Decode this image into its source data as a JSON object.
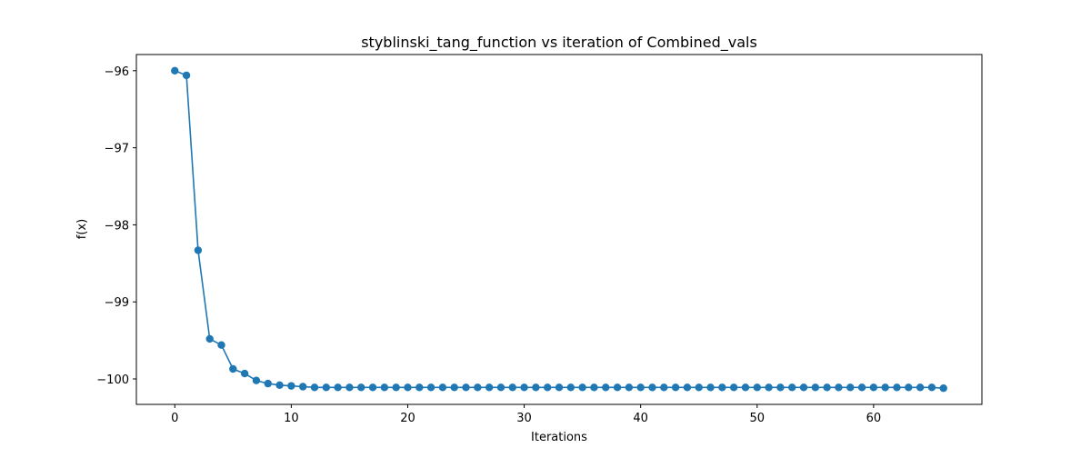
{
  "chart_data": {
    "type": "line",
    "title": "styblinski_tang_function vs iteration of Combined_vals",
    "xlabel": "Iterations",
    "ylabel": "f(x)",
    "xlim": [
      -3.3,
      69.3
    ],
    "ylim": [
      -100.33,
      -95.79
    ],
    "xticks": [
      0,
      10,
      20,
      30,
      40,
      50,
      60
    ],
    "yticks": [
      -96,
      -97,
      -98,
      -99,
      -100
    ],
    "xtick_labels": [
      "0",
      "10",
      "20",
      "30",
      "40",
      "50",
      "60"
    ],
    "ytick_labels": [
      "−96",
      "−97",
      "−98",
      "−99",
      "−100"
    ],
    "grid": false,
    "marker": "circle",
    "color": "#1f77b4",
    "series": [
      {
        "x": [
          0,
          1,
          2,
          3,
          4,
          5,
          6,
          7,
          8,
          9,
          10,
          11,
          12,
          13,
          14,
          15,
          16,
          17,
          18,
          19,
          20,
          21,
          22,
          23,
          24,
          25,
          26,
          27,
          28,
          29,
          30,
          31,
          32,
          33,
          34,
          35,
          36,
          37,
          38,
          39,
          40,
          41,
          42,
          43,
          44,
          45,
          46,
          47,
          48,
          49,
          50,
          51,
          52,
          53,
          54,
          55,
          56,
          57,
          58,
          59,
          60,
          61,
          62,
          63,
          64,
          65,
          66
        ],
        "values": [
          -96.0,
          -96.06,
          -98.33,
          -99.48,
          -99.56,
          -99.87,
          -99.93,
          -100.02,
          -100.06,
          -100.08,
          -100.09,
          -100.1,
          -100.11,
          -100.11,
          -100.11,
          -100.11,
          -100.11,
          -100.11,
          -100.11,
          -100.11,
          -100.11,
          -100.11,
          -100.11,
          -100.11,
          -100.11,
          -100.11,
          -100.11,
          -100.11,
          -100.11,
          -100.11,
          -100.11,
          -100.11,
          -100.11,
          -100.11,
          -100.11,
          -100.11,
          -100.11,
          -100.11,
          -100.11,
          -100.11,
          -100.11,
          -100.11,
          -100.11,
          -100.11,
          -100.11,
          -100.11,
          -100.11,
          -100.11,
          -100.11,
          -100.11,
          -100.11,
          -100.11,
          -100.11,
          -100.11,
          -100.11,
          -100.11,
          -100.11,
          -100.11,
          -100.11,
          -100.11,
          -100.11,
          -100.11,
          -100.11,
          -100.11,
          -100.11,
          -100.11,
          -100.12
        ]
      }
    ]
  }
}
